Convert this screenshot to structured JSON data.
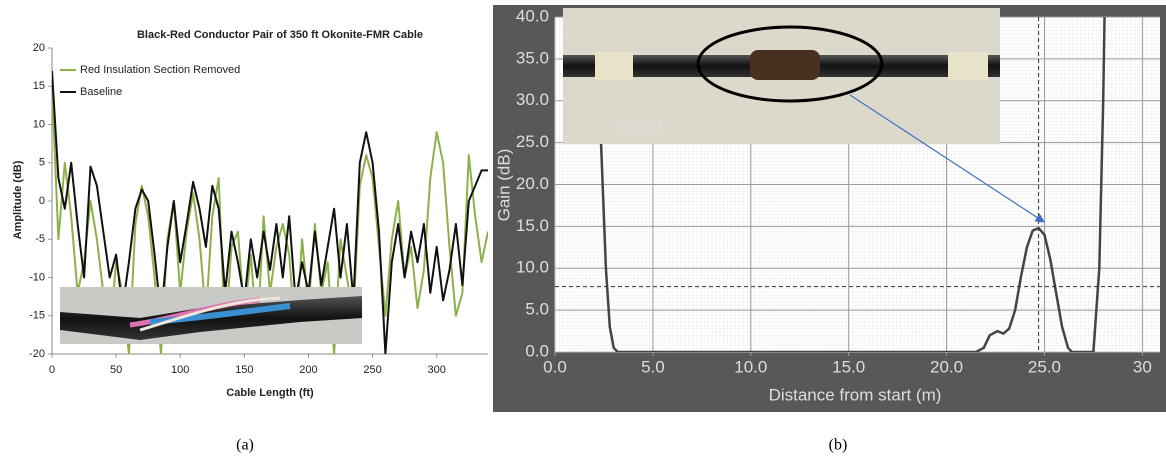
{
  "chart_data": [
    {
      "type": "line",
      "title": "Black-Red Conductor Pair of 350 ft Okonite-FMR Cable",
      "caption": "(a)",
      "xlabel": "Cable Length (ft)",
      "ylabel": "Amplitude (dB)",
      "xlim": [
        0,
        340
      ],
      "ylim": [
        -20,
        20
      ],
      "xticks": [
        0,
        50,
        100,
        150,
        200,
        250,
        300
      ],
      "yticks": [
        -20,
        -15,
        -10,
        -5,
        0,
        5,
        10,
        15,
        20
      ],
      "legend": "upper left",
      "x": [
        0,
        5,
        10,
        15,
        20,
        25,
        30,
        35,
        40,
        45,
        50,
        55,
        60,
        65,
        70,
        75,
        80,
        85,
        90,
        95,
        100,
        105,
        110,
        115,
        120,
        125,
        130,
        135,
        140,
        145,
        150,
        155,
        160,
        165,
        170,
        175,
        180,
        185,
        190,
        195,
        200,
        205,
        210,
        215,
        220,
        225,
        230,
        235,
        240,
        245,
        250,
        255,
        260,
        265,
        270,
        275,
        280,
        285,
        290,
        295,
        300,
        305,
        310,
        315,
        320,
        325,
        330,
        335,
        340
      ],
      "series": [
        {
          "name": "Red Insulation Section Removed",
          "color": "#8db04a",
          "values": [
            15,
            -5,
            5,
            -2,
            -12,
            -8,
            0,
            -5,
            -12,
            -18,
            -8,
            -12,
            -20,
            -3,
            2,
            -2,
            -10,
            -20,
            -5,
            0,
            -12,
            -4,
            1,
            -5,
            -15,
            -2,
            3,
            -18,
            -6,
            -4,
            -15,
            -7,
            -18,
            -2,
            -12,
            -6,
            -3,
            -7,
            -18,
            -5,
            -14,
            -3,
            -12,
            -8,
            -20,
            -5,
            -10,
            -15,
            2,
            6,
            3,
            -6,
            -15,
            -5,
            0,
            -10,
            -6,
            -14,
            -9,
            3,
            9,
            5,
            -6,
            -15,
            -12,
            6,
            -2,
            -8,
            -4
          ]
        },
        {
          "name": "Baseline",
          "color": "#111111",
          "values": [
            17,
            3,
            -1,
            5,
            -3,
            -10,
            4.5,
            2,
            -4,
            -10,
            -7,
            -14,
            -8,
            -1,
            1.5,
            0,
            -7,
            -15,
            -6,
            0,
            -8,
            -3,
            2.5,
            -1,
            -6,
            2,
            -1,
            -12,
            -4,
            -8,
            -13,
            -5,
            -10,
            -4,
            -9,
            -3,
            -10,
            -2,
            -13,
            -8,
            -12,
            -4,
            -11,
            -6,
            -1,
            -10,
            -3,
            -13,
            5,
            9,
            5,
            -4,
            -20,
            -8,
            -3,
            -10,
            -4,
            -8,
            -3,
            -12,
            -6,
            -13,
            -9,
            -3,
            -11,
            0,
            2,
            4,
            4
          ]
        }
      ]
    },
    {
      "type": "line",
      "caption": "(b)",
      "xlabel": "Distance from start (m)",
      "ylabel": "Gain (dB)",
      "inset_label": "EOG1",
      "xlim": [
        0,
        30.9
      ],
      "ylim": [
        0,
        40
      ],
      "xticks": [
        {
          "value": 0,
          "label": "0.0"
        },
        {
          "value": 5,
          "label": "5.0"
        },
        {
          "value": 10,
          "label": "10.0"
        },
        {
          "value": 15,
          "label": "15.0"
        },
        {
          "value": 20,
          "label": "20.0"
        },
        {
          "value": 25,
          "label": "25.0"
        },
        30
      ],
      "yticks": [
        {
          "value": 0,
          "label": "0.0"
        },
        {
          "value": 5,
          "label": "5.0"
        },
        {
          "value": 10,
          "label": "10.0"
        },
        {
          "value": 15,
          "label": "15.0"
        },
        {
          "value": 20,
          "label": "20.0"
        },
        {
          "value": 25,
          "label": "25.0"
        },
        {
          "value": 30,
          "label": "30.0"
        },
        {
          "value": 35,
          "label": "35.0"
        },
        {
          "value": 40,
          "label": "40.0"
        }
      ],
      "cursor": {
        "x": 24.7,
        "y": 7.8
      },
      "x": [
        2.0,
        2.2,
        2.4,
        2.6,
        2.8,
        3.0,
        3.2,
        4,
        6,
        10,
        15,
        20,
        21.5,
        21.9,
        22.2,
        22.6,
        22.9,
        23.2,
        23.5,
        23.8,
        24.1,
        24.4,
        24.7,
        25.0,
        25.3,
        25.6,
        25.9,
        26.2,
        26.4,
        26.6,
        27,
        27.5,
        27.8,
        28.0,
        28.1
      ],
      "series": [
        {
          "color": "#444444",
          "values": [
            45,
            34,
            22,
            10,
            3,
            0.5,
            0,
            0,
            0,
            0,
            0,
            0,
            0,
            0.5,
            2,
            2.5,
            2.2,
            2.8,
            5,
            9,
            12.5,
            14.5,
            14.8,
            14,
            11,
            7,
            3,
            0.5,
            0,
            0,
            0,
            0,
            10,
            30,
            45
          ]
        }
      ]
    }
  ]
}
